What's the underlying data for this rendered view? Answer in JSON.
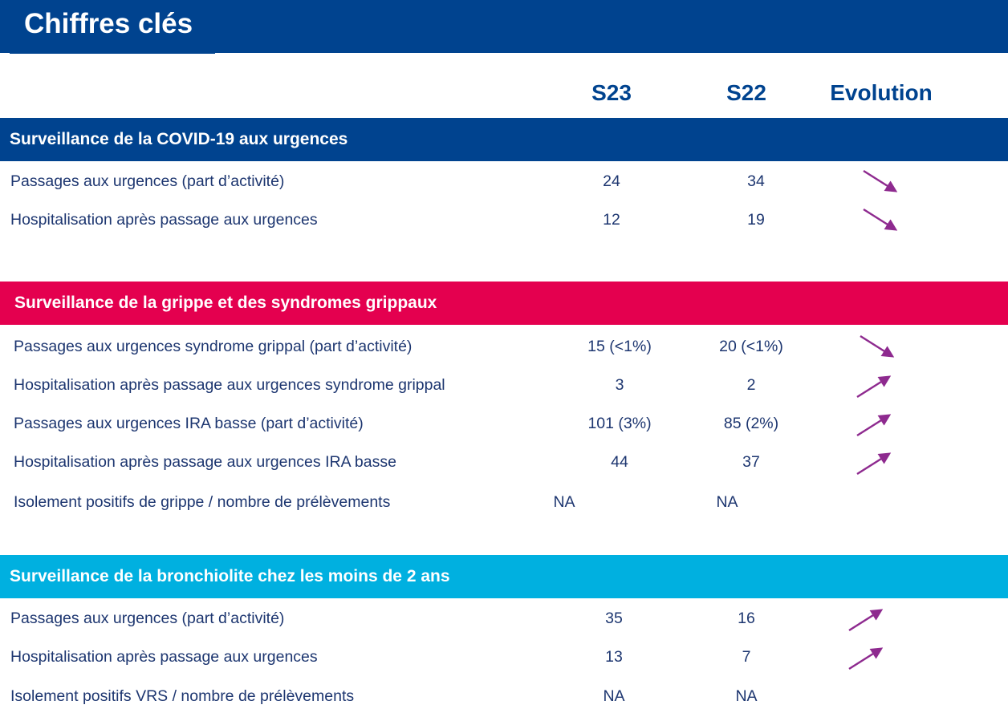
{
  "title": "Chiffres clés",
  "columns": {
    "current": "S23",
    "previous": "S22",
    "evolution": "Evolution"
  },
  "colors": {
    "brand": "#00438f",
    "grippe": "#e4004f",
    "bronchiolite": "#00b0e0",
    "arrow": "#8e2a8f"
  },
  "sections": [
    {
      "title": "Surveillance de la COVID-19 aux urgences",
      "rows": [
        {
          "label": "Passages aux urgences (part d’activité)",
          "s23": "24",
          "s22": "34",
          "trend": "down"
        },
        {
          "label": "Hospitalisation après passage aux urgences",
          "s23": "12",
          "s22": "19",
          "trend": "down"
        }
      ]
    },
    {
      "title": "Surveillance de la grippe et des syndromes grippaux",
      "rows": [
        {
          "label": "Passages aux urgences syndrome grippal (part d’activité)",
          "s23": "15 (<1%)",
          "s22": "20 (<1%)",
          "trend": "down"
        },
        {
          "label": "Hospitalisation après passage aux urgences syndrome grippal",
          "s23": "3",
          "s22": "2",
          "trend": "up"
        },
        {
          "label": "Passages aux urgences IRA basse (part d’activité)",
          "s23": "101 (3%)",
          "s22": "85 (2%)",
          "trend": "up"
        },
        {
          "label": "Hospitalisation après passage aux urgences IRA basse",
          "s23": "44",
          "s22": "37",
          "trend": "up"
        },
        {
          "label": "Isolement positifs de grippe / nombre de prélèvements",
          "s23": "NA",
          "s22": "NA",
          "trend": "none"
        }
      ]
    },
    {
      "title": "Surveillance de la bronchiolite chez les moins de 2 ans",
      "rows": [
        {
          "label": "Passages aux urgences (part d’activité)",
          "s23": "35",
          "s22": "16",
          "trend": "up"
        },
        {
          "label": "Hospitalisation après passage aux urgences",
          "s23": "13",
          "s22": "7",
          "trend": "up"
        },
        {
          "label": "Isolement positifs VRS / nombre de prélèvements",
          "s23": "NA",
          "s22": "NA",
          "trend": "none"
        }
      ]
    }
  ]
}
